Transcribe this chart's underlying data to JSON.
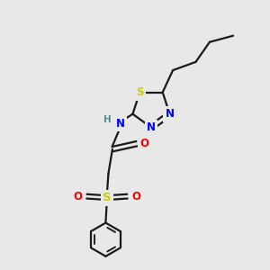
{
  "bg_color": "#e8e8e8",
  "bond_color": "#1a1a1a",
  "bond_width": 1.6,
  "atom_colors": {
    "S_thiadiazole": "#cccc00",
    "S_sulfonyl": "#cccc00",
    "N": "#0000ff",
    "O": "#ff0000",
    "H": "#4a9090",
    "C": "#1a1a1a"
  },
  "font_size": 8.5,
  "fig_size": [
    3.0,
    3.0
  ],
  "dpi": 100
}
